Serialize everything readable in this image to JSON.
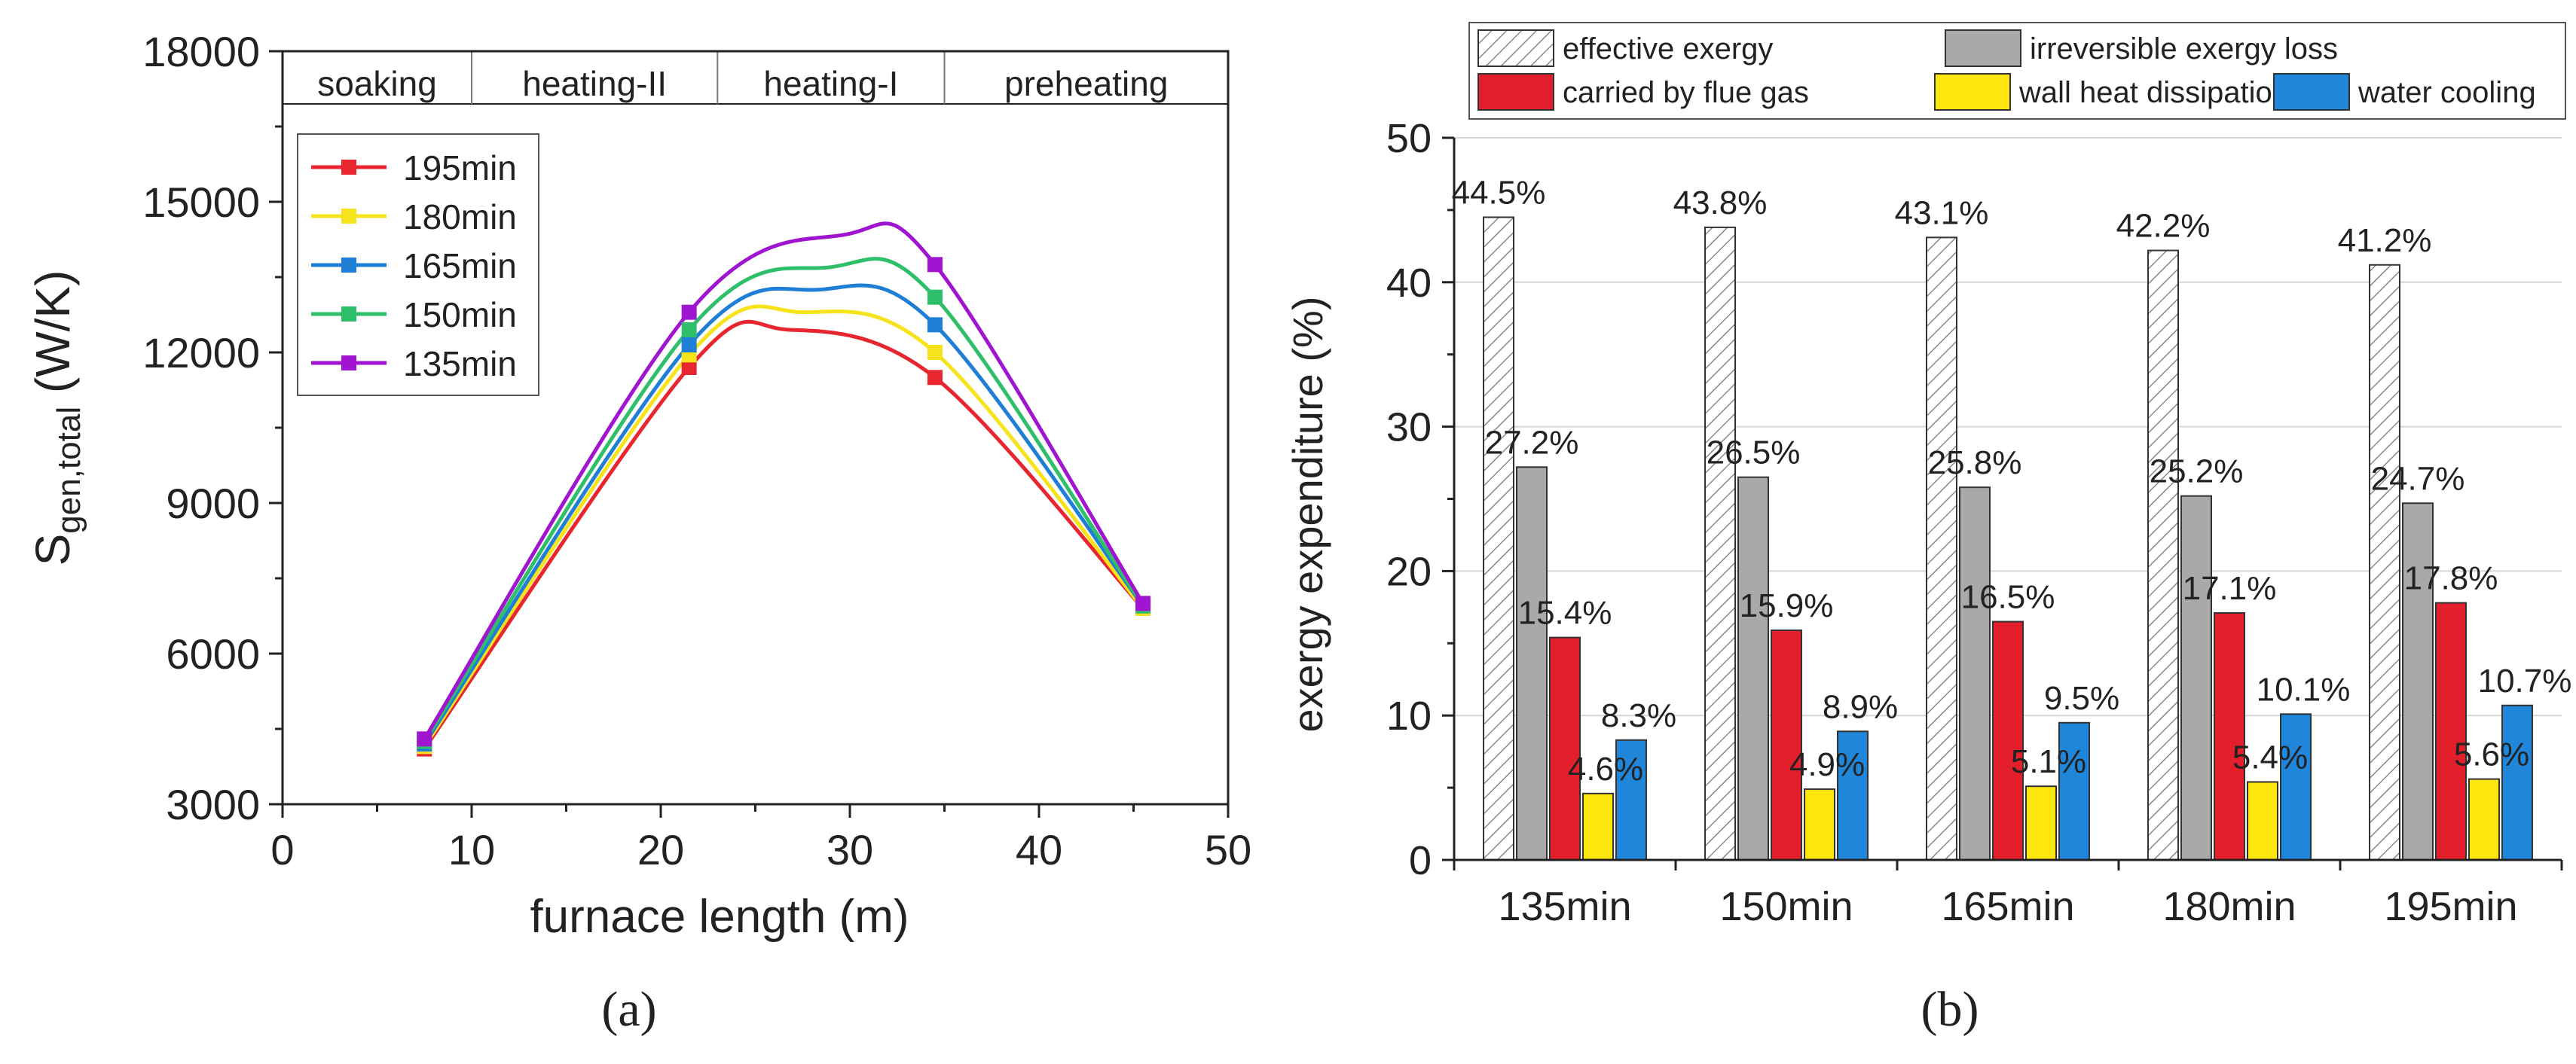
{
  "panels": {
    "a_label": "(a)",
    "b_label": "(b)"
  },
  "chart_data": [
    {
      "type": "line",
      "title": "",
      "xlabel": "furnace length (m)",
      "ylabel_main": "S",
      "ylabel_sub": "gen,total",
      "ylabel_unit": " (W/K)",
      "xlim": [
        0,
        50
      ],
      "ylim": [
        3000,
        18000
      ],
      "xticks": [
        0,
        10,
        20,
        30,
        40,
        50
      ],
      "yticks": [
        3000,
        6000,
        9000,
        12000,
        15000,
        18000
      ],
      "zones": [
        {
          "label": "soaking",
          "from": 0,
          "to": 10
        },
        {
          "label": "heating-II",
          "from": 10,
          "to": 23
        },
        {
          "label": "heating-I",
          "from": 23,
          "to": 35
        },
        {
          "label": "preheating",
          "from": 35,
          "to": 50
        }
      ],
      "x": [
        7.5,
        21.5,
        34.5,
        45.5
      ],
      "series": [
        {
          "name": "195min",
          "color": "#e8262f",
          "values": [
            4100,
            11700,
            11500,
            6900
          ],
          "peak": [
            26.8,
            12450
          ]
        },
        {
          "name": "180min",
          "color": "#f7e31c",
          "values": [
            4150,
            11950,
            12000,
            6900
          ],
          "peak": [
            27.6,
            12800
          ]
        },
        {
          "name": "165min",
          "color": "#1f7fd6",
          "values": [
            4200,
            12150,
            12550,
            6950
          ],
          "peak": [
            28.4,
            13250
          ]
        },
        {
          "name": "150min",
          "color": "#2fbf6b",
          "values": [
            4250,
            12450,
            13100,
            6950
          ],
          "peak": [
            29.0,
            13700
          ]
        },
        {
          "name": "135min",
          "color": "#a015cf",
          "values": [
            4300,
            12800,
            13750,
            7000
          ],
          "peak": [
            29.8,
            14350
          ]
        }
      ]
    },
    {
      "type": "bar",
      "title": "",
      "xlabel": "",
      "ylabel": "exergy expenditure (%)",
      "ylim": [
        0,
        50
      ],
      "yticks": [
        0,
        10,
        20,
        30,
        40,
        50
      ],
      "categories": [
        "135min",
        "150min",
        "165min",
        "180min",
        "195min"
      ],
      "series": [
        {
          "name": "effective exergy",
          "color": "#ffffff",
          "pattern": "hatch",
          "values": [
            44.5,
            43.8,
            43.1,
            42.2,
            41.2
          ],
          "labels": [
            "44.5%",
            "43.8%",
            "43.1%",
            "42.2%",
            "41.2%"
          ]
        },
        {
          "name": "irreversible exergy loss",
          "color": "#a9a9a9",
          "values": [
            27.2,
            26.5,
            25.8,
            25.2,
            24.7
          ],
          "labels": [
            "27.2%",
            "26.5%",
            "25.8%",
            "25.2%",
            "24.7%"
          ]
        },
        {
          "name": "carried by flue gas",
          "color": "#e31f2c",
          "values": [
            15.4,
            15.9,
            16.5,
            17.1,
            17.8
          ],
          "labels": [
            "15.4%",
            "15.9%",
            "16.5%",
            "17.1%",
            "17.8%"
          ]
        },
        {
          "name": "wall heat dissipation",
          "color": "#fde50e",
          "values": [
            4.6,
            4.9,
            5.1,
            5.4,
            5.6
          ],
          "labels": [
            "4.6%",
            "4.9%",
            "5.1%",
            "5.4%",
            "5.6%"
          ]
        },
        {
          "name": "water cooling",
          "color": "#1f86d9",
          "values": [
            8.3,
            8.9,
            9.5,
            10.1,
            10.7
          ],
          "labels": [
            "8.3%",
            "8.9%",
            "9.5%",
            "10.1%",
            "10.7%"
          ]
        }
      ]
    }
  ]
}
